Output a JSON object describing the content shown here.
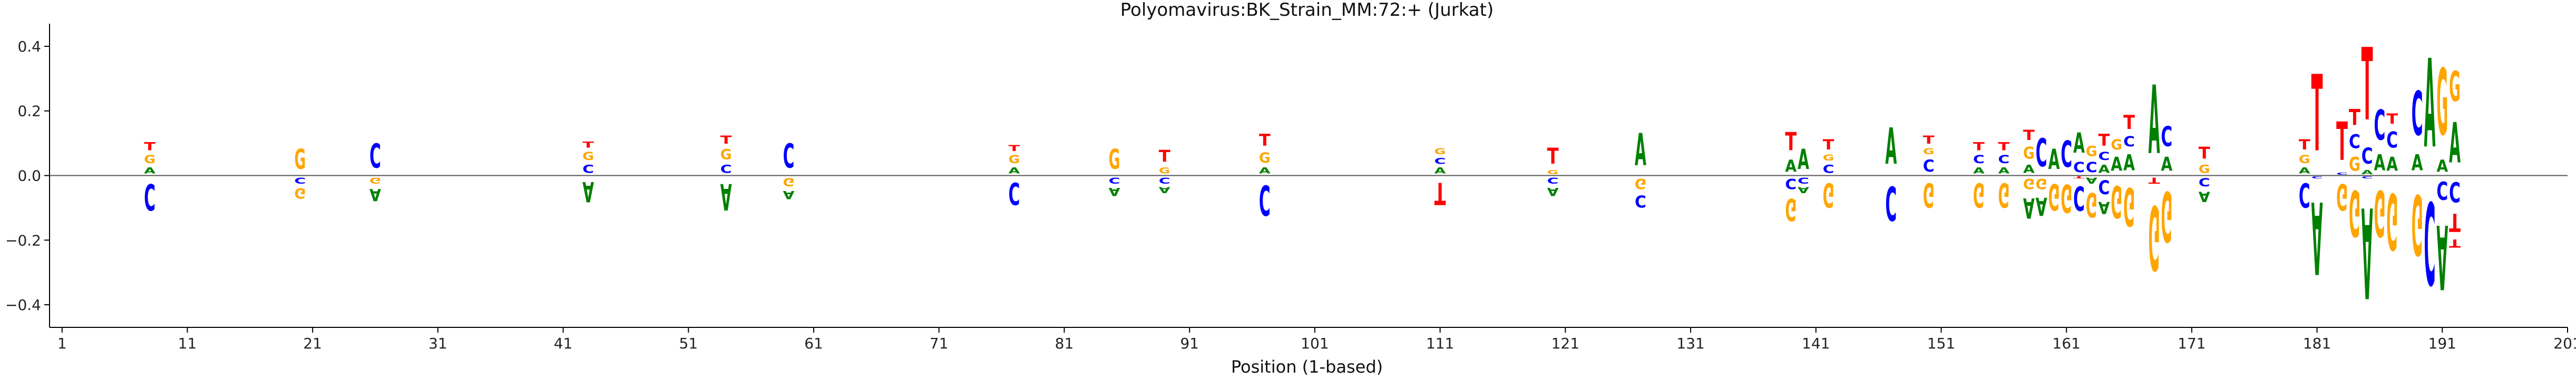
{
  "chart_data": {
    "type": "sequence-logo",
    "title": "Polyomavirus:BK_Strain_MM:72:+  (Jurkat)",
    "xlabel": "Position (1-based)",
    "ylabel": "",
    "xlim": [
      0,
      201
    ],
    "ylim": [
      -0.47,
      0.47
    ],
    "x_ticks": [
      1,
      11,
      21,
      31,
      41,
      51,
      61,
      71,
      81,
      91,
      101,
      111,
      121,
      131,
      141,
      151,
      161,
      171,
      181,
      191,
      201
    ],
    "y_ticks": [
      -0.4,
      -0.2,
      0.0,
      0.2,
      0.4
    ],
    "y_tick_labels": [
      "−0.4",
      "−0.2",
      "0.0",
      "0.2",
      "0.4"
    ],
    "colors": {
      "A": "#008000",
      "C": "#0000ff",
      "G": "#ffa500",
      "T": "#ff0000"
    },
    "positions": [
      {
        "pos": 8,
        "up": [
          [
            "A",
            0.03
          ],
          [
            "G",
            0.04
          ],
          [
            "T",
            0.04
          ]
        ],
        "down": [
          [
            "C",
            0.13
          ]
        ]
      },
      {
        "pos": 20,
        "up": [
          [
            "G",
            0.1
          ]
        ],
        "down": [
          [
            "C",
            0.03
          ],
          [
            "G",
            0.05
          ]
        ]
      },
      {
        "pos": 26,
        "up": [
          [
            "C",
            0.12
          ]
        ],
        "down": [
          [
            "G",
            0.03
          ],
          [
            "A",
            0.06
          ]
        ]
      },
      {
        "pos": 43,
        "up": [
          [
            "C",
            0.04
          ],
          [
            "G",
            0.04
          ],
          [
            "T",
            0.03
          ]
        ],
        "down": [
          [
            "A",
            0.1
          ]
        ]
      },
      {
        "pos": 54,
        "up": [
          [
            "C",
            0.04
          ],
          [
            "G",
            0.05
          ],
          [
            "T",
            0.04
          ]
        ],
        "down": [
          [
            "A",
            0.13
          ]
        ]
      },
      {
        "pos": 59,
        "up": [
          [
            "C",
            0.12
          ]
        ],
        "down": [
          [
            "G",
            0.04
          ],
          [
            "A",
            0.04
          ]
        ]
      },
      {
        "pos": 77,
        "up": [
          [
            "A",
            0.03
          ],
          [
            "G",
            0.04
          ],
          [
            "T",
            0.03
          ]
        ],
        "down": [
          [
            "C",
            0.11
          ]
        ]
      },
      {
        "pos": 85,
        "up": [
          [
            "G",
            0.1
          ]
        ],
        "down": [
          [
            "C",
            0.03
          ],
          [
            "A",
            0.04
          ]
        ]
      },
      {
        "pos": 89,
        "up": [
          [
            "G",
            0.03
          ],
          [
            "T",
            0.06
          ]
        ],
        "down": [
          [
            "C",
            0.03
          ],
          [
            "A",
            0.03
          ]
        ]
      },
      {
        "pos": 97,
        "up": [
          [
            "A",
            0.03
          ],
          [
            "G",
            0.05
          ],
          [
            "T",
            0.06
          ]
        ],
        "down": [
          [
            "C",
            0.15
          ]
        ]
      },
      {
        "pos": 111,
        "up": [
          [
            "A",
            0.03
          ],
          [
            "C",
            0.03
          ],
          [
            "G",
            0.03
          ]
        ],
        "down": [
          [
            "T",
            0.11
          ]
        ]
      },
      {
        "pos": 120,
        "up": [
          [
            "G",
            0.02
          ],
          [
            "T",
            0.08
          ]
        ],
        "down": [
          [
            "C",
            0.03
          ],
          [
            "A",
            0.04
          ]
        ]
      },
      {
        "pos": 127,
        "up": [
          [
            "A",
            0.16
          ]
        ],
        "down": [
          [
            "G",
            0.05
          ],
          [
            "C",
            0.06
          ]
        ]
      },
      {
        "pos": 139,
        "up": [
          [
            "A",
            0.06
          ],
          [
            "T",
            0.09
          ]
        ],
        "down": [
          [
            "C",
            0.05
          ],
          [
            "G",
            0.11
          ]
        ]
      },
      {
        "pos": 140,
        "up": [
          [
            "A",
            0.1
          ]
        ],
        "down": [
          [
            "C",
            0.03
          ],
          [
            "A",
            0.03
          ]
        ]
      },
      {
        "pos": 142,
        "up": [
          [
            "C",
            0.04
          ],
          [
            "G",
            0.03
          ],
          [
            "T",
            0.05
          ]
        ],
        "down": [
          [
            "G",
            0.12
          ]
        ]
      },
      {
        "pos": 147,
        "up": [
          [
            "A",
            0.18
          ]
        ],
        "down": [
          [
            "C",
            0.17
          ]
        ]
      },
      {
        "pos": 150,
        "up": [
          [
            "C",
            0.06
          ],
          [
            "G",
            0.03
          ],
          [
            "T",
            0.04
          ]
        ],
        "down": [
          [
            "G",
            0.12
          ]
        ]
      },
      {
        "pos": 154,
        "up": [
          [
            "A",
            0.03
          ],
          [
            "C",
            0.04
          ],
          [
            "T",
            0.04
          ]
        ],
        "down": [
          [
            "G",
            0.12
          ]
        ]
      },
      {
        "pos": 156,
        "up": [
          [
            "A",
            0.03
          ],
          [
            "C",
            0.04
          ],
          [
            "T",
            0.04
          ]
        ],
        "down": [
          [
            "G",
            0.12
          ]
        ]
      },
      {
        "pos": 158,
        "up": [
          [
            "A",
            0.04
          ],
          [
            "G",
            0.06
          ],
          [
            "T",
            0.05
          ]
        ],
        "down": [
          [
            "G",
            0.05
          ],
          [
            "A",
            0.1
          ]
        ]
      },
      {
        "pos": 159,
        "up": [
          [
            "C",
            0.14
          ]
        ],
        "down": [
          [
            "G",
            0.05
          ],
          [
            "A",
            0.09
          ]
        ]
      },
      {
        "pos": 160,
        "up": [
          [
            "A",
            0.1
          ]
        ],
        "down": [
          [
            "G",
            0.13
          ]
        ]
      },
      {
        "pos": 161,
        "up": [
          [
            "C",
            0.13
          ]
        ],
        "down": [
          [
            "G",
            0.14
          ]
        ]
      },
      {
        "pos": 162,
        "up": [
          [
            "C",
            0.05
          ],
          [
            "A",
            0.1
          ]
        ],
        "down": [
          [
            "T",
            0.01
          ],
          [
            "C",
            0.12
          ]
        ]
      },
      {
        "pos": 163,
        "up": [
          [
            "C",
            0.05
          ],
          [
            "G",
            0.05
          ]
        ],
        "down": [
          [
            "A",
            0.03
          ],
          [
            "G",
            0.12
          ]
        ]
      },
      {
        "pos": 164,
        "up": [
          [
            "A",
            0.04
          ],
          [
            "C",
            0.04
          ],
          [
            "T",
            0.06
          ]
        ],
        "down": [
          [
            "C",
            0.07
          ],
          [
            "A",
            0.06
          ]
        ]
      },
      {
        "pos": 165,
        "up": [
          [
            "A",
            0.07
          ],
          [
            "G",
            0.05
          ]
        ],
        "down": [
          [
            "G",
            0.16
          ]
        ]
      },
      {
        "pos": 166,
        "up": [
          [
            "A",
            0.08
          ],
          [
            "C",
            0.05
          ],
          [
            "T",
            0.07
          ]
        ],
        "down": [
          [
            "G",
            0.19
          ]
        ]
      },
      {
        "pos": 168,
        "up": [
          [
            "A",
            0.34
          ]
        ],
        "down": [
          [
            "T",
            0.03
          ],
          [
            "G",
            0.32
          ]
        ]
      },
      {
        "pos": 169,
        "up": [
          [
            "A",
            0.07
          ],
          [
            "C",
            0.1
          ]
        ],
        "down": [
          [
            "G",
            0.25
          ]
        ]
      },
      {
        "pos": 172,
        "up": [
          [
            "G",
            0.04
          ],
          [
            "T",
            0.06
          ]
        ],
        "down": [
          [
            "C",
            0.04
          ],
          [
            "A",
            0.05
          ]
        ]
      },
      {
        "pos": 180,
        "up": [
          [
            "A",
            0.03
          ],
          [
            "G",
            0.04
          ],
          [
            "T",
            0.05
          ]
        ],
        "down": [
          [
            "C",
            0.12
          ]
        ]
      },
      {
        "pos": 181,
        "up": [
          [
            "T",
            0.38
          ]
        ],
        "down": [
          [
            "C",
            0.01
          ],
          [
            "A",
            0.36
          ]
        ]
      },
      {
        "pos": 183,
        "up": [
          [
            "C",
            0.01
          ],
          [
            "T",
            0.19
          ]
        ],
        "down": [
          [
            "G",
            0.13
          ]
        ]
      },
      {
        "pos": 184,
        "up": [
          [
            "G",
            0.07
          ],
          [
            "C",
            0.07
          ],
          [
            "T",
            0.08
          ]
        ],
        "down": [
          [
            "G",
            0.23
          ]
        ]
      },
      {
        "pos": 185,
        "up": [
          [
            "A",
            0.02
          ],
          [
            "C",
            0.08
          ],
          [
            "T",
            0.36
          ]
        ],
        "down": [
          [
            "C",
            0.01
          ],
          [
            "A",
            0.45
          ]
        ]
      },
      {
        "pos": 186,
        "up": [
          [
            "A",
            0.08
          ],
          [
            "C",
            0.15
          ]
        ],
        "down": [
          [
            "G",
            0.23
          ]
        ]
      },
      {
        "pos": 187,
        "up": [
          [
            "A",
            0.07
          ],
          [
            "C",
            0.08
          ],
          [
            "T",
            0.05
          ]
        ],
        "down": [
          [
            "G",
            0.28
          ]
        ]
      },
      {
        "pos": 189,
        "up": [
          [
            "A",
            0.08
          ],
          [
            "C",
            0.22
          ]
        ],
        "down": [
          [
            "G",
            0.3
          ]
        ]
      },
      {
        "pos": 190,
        "up": [
          [
            "A",
            0.44
          ]
        ],
        "down": [
          [
            "C",
            0.41
          ]
        ]
      },
      {
        "pos": 191,
        "up": [
          [
            "A",
            0.06
          ],
          [
            "G",
            0.33
          ]
        ],
        "down": [
          [
            "C",
            0.09
          ],
          [
            "A",
            0.32
          ]
        ]
      },
      {
        "pos": 192,
        "up": [
          [
            "A",
            0.2
          ],
          [
            "G",
            0.15
          ]
        ],
        "down": [
          [
            "C",
            0.1
          ],
          [
            "T",
            0.09
          ],
          [
            "T",
            0.04
          ]
        ]
      }
    ]
  }
}
